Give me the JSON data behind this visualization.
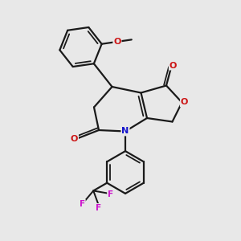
{
  "background_color": "#e8e8e8",
  "bond_color": "#1a1a1a",
  "N_color": "#1414cc",
  "O_color": "#cc1414",
  "F_color": "#cc14cc",
  "figsize": [
    3.0,
    3.0
  ],
  "dpi": 100,
  "xlim": [
    0,
    10
  ],
  "ylim": [
    0,
    10
  ]
}
